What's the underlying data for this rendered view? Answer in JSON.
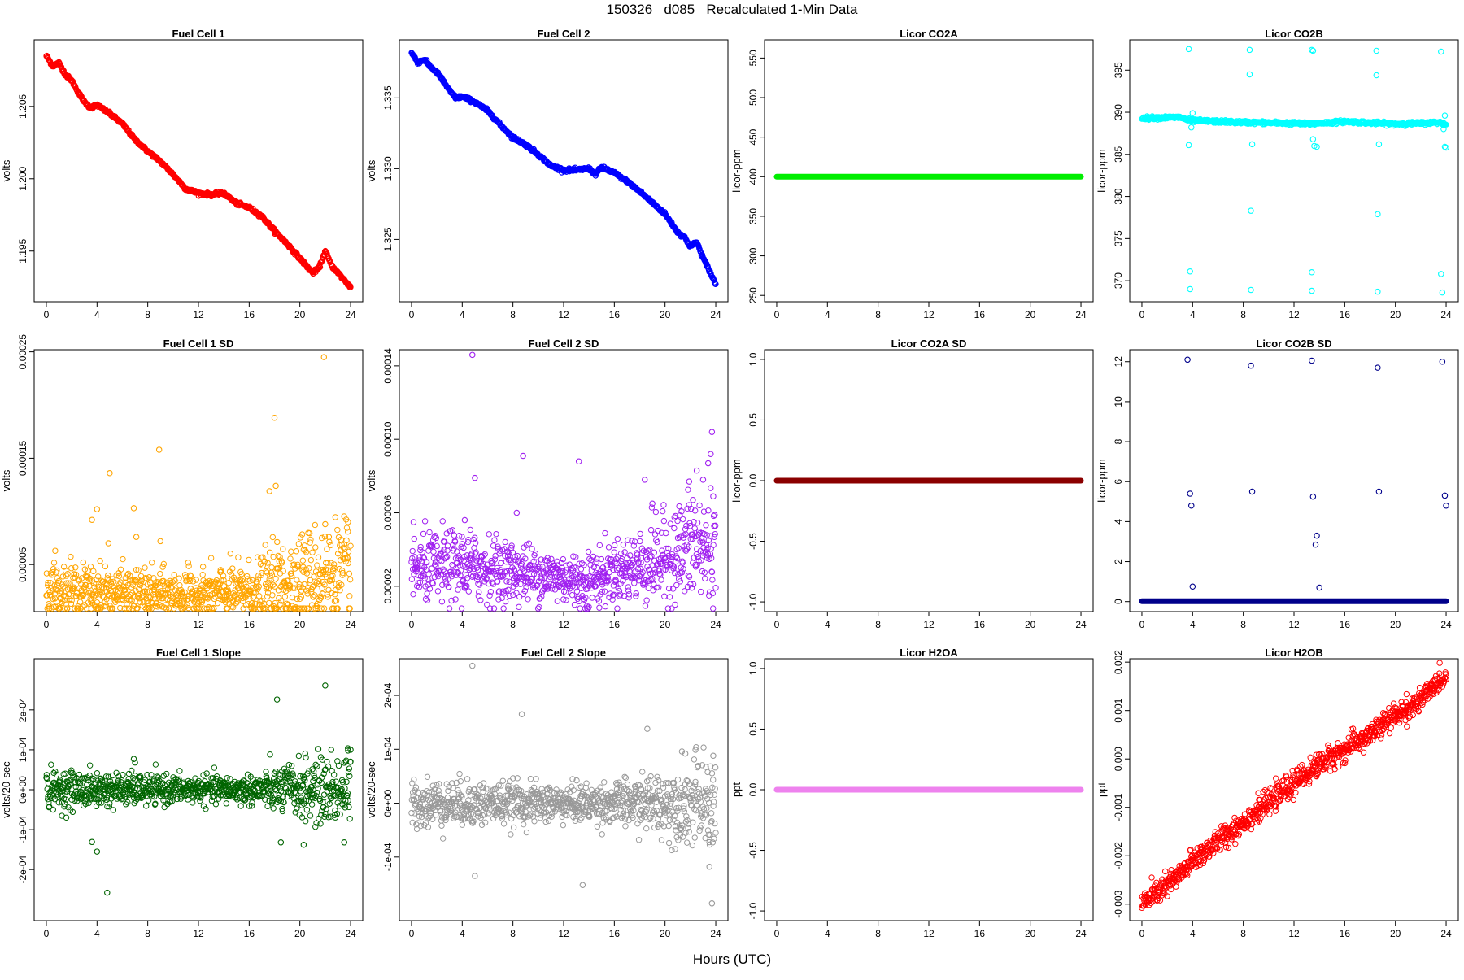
{
  "title": "150326   d085   Recalculated 1-Min Data",
  "xlabel": "Hours (UTC)",
  "chart_data": [
    {
      "type": "scatter",
      "title": "Fuel Cell 1",
      "ylabel": "volts",
      "color": "#ff0000",
      "xlim": [
        0,
        24
      ],
      "ylim": [
        1.1915,
        1.2096
      ],
      "xticks": [
        "0",
        "4",
        "8",
        "12",
        "16",
        "20",
        "24"
      ],
      "yticks": [
        "1.195",
        "1.200",
        "1.205"
      ],
      "ytick_values": [
        1.195,
        1.2,
        1.205
      ],
      "style": "dense-line",
      "x": [
        0,
        0.5,
        1,
        1.5,
        2,
        2.5,
        3,
        3.5,
        4,
        5,
        6,
        7,
        8,
        9,
        10,
        11,
        12,
        13,
        14,
        15,
        16,
        17,
        18,
        19,
        20,
        21,
        21.5,
        22,
        22.5,
        23,
        23.5,
        24
      ],
      "y": [
        1.2085,
        1.2078,
        1.208,
        1.2072,
        1.2068,
        1.206,
        1.2053,
        1.2049,
        1.2051,
        1.2045,
        1.2038,
        1.2027,
        1.2019,
        1.2012,
        1.2003,
        1.1993,
        1.199,
        1.1989,
        1.199,
        1.1983,
        1.198,
        1.1974,
        1.1964,
        1.1955,
        1.1945,
        1.1935,
        1.1938,
        1.195,
        1.194,
        1.1935,
        1.193,
        1.1925
      ]
    },
    {
      "type": "scatter",
      "title": "Fuel Cell 2",
      "ylabel": "volts",
      "color": "#0000ff",
      "xlim": [
        0,
        24
      ],
      "ylim": [
        1.3206,
        1.3391
      ],
      "xticks": [
        "0",
        "4",
        "8",
        "12",
        "16",
        "20",
        "24"
      ],
      "yticks": [
        "1.325",
        "1.330",
        "1.335"
      ],
      "ytick_values": [
        1.325,
        1.33,
        1.335
      ],
      "style": "dense-line",
      "x": [
        0,
        0.5,
        1,
        1.5,
        2,
        2.5,
        3,
        3.5,
        4,
        5,
        6,
        7,
        8,
        9,
        10,
        11,
        12,
        13,
        14,
        14.5,
        15,
        16,
        17,
        18,
        19,
        20,
        21,
        21.5,
        22,
        22.5,
        23,
        23.5,
        24
      ],
      "y": [
        1.3382,
        1.3375,
        1.3377,
        1.3372,
        1.3368,
        1.3362,
        1.3355,
        1.335,
        1.3351,
        1.3347,
        1.3341,
        1.3331,
        1.3322,
        1.3317,
        1.331,
        1.3302,
        1.3299,
        1.3299,
        1.33,
        1.3296,
        1.3301,
        1.3297,
        1.3291,
        1.3284,
        1.3276,
        1.3268,
        1.3255,
        1.3252,
        1.3245,
        1.3248,
        1.3237,
        1.3228,
        1.3218
      ]
    },
    {
      "type": "scatter",
      "title": "Licor CO2A",
      "ylabel": "licor-ppm",
      "color": "#00ee00",
      "xlim": [
        0,
        24
      ],
      "ylim": [
        242,
        573
      ],
      "xticks": [
        "0",
        "4",
        "8",
        "12",
        "16",
        "20",
        "24"
      ],
      "yticks": [
        "250",
        "300",
        "350",
        "400",
        "450",
        "500",
        "550"
      ],
      "ytick_values": [
        250,
        300,
        350,
        400,
        450,
        500,
        550
      ],
      "style": "dense-line",
      "x": [
        0,
        24
      ],
      "y": [
        400,
        400
      ]
    },
    {
      "type": "scatter",
      "title": "Licor CO2B",
      "ylabel": "licor-ppm",
      "color": "#00ffff",
      "xlim": [
        0,
        24
      ],
      "ylim": [
        367.5,
        398.6
      ],
      "xticks": [
        "0",
        "4",
        "8",
        "12",
        "16",
        "20",
        "24"
      ],
      "yticks": [
        "370",
        "375",
        "380",
        "385",
        "390",
        "395"
      ],
      "ytick_values": [
        370,
        375,
        380,
        385,
        390,
        395
      ],
      "style": "dense-line",
      "x": [
        0,
        3,
        3.6,
        4,
        8,
        12,
        13,
        14,
        16,
        20,
        22,
        23.5,
        24
      ],
      "y": [
        389.3,
        389.4,
        389.1,
        389.0,
        388.8,
        388.7,
        388.6,
        388.7,
        388.9,
        388.6,
        388.7,
        388.8,
        388.5
      ],
      "outliers_x": [
        3.7,
        3.7,
        3.8,
        3.8,
        3.9,
        4.0,
        8.5,
        8.5,
        8.7,
        8.6,
        8.6,
        13.4,
        13.4,
        13.5,
        13.6,
        13.8,
        13.4,
        13.5,
        18.5,
        18.5,
        18.7,
        18.6,
        18.6,
        23.6,
        23.6,
        23.9,
        23.8,
        23.7,
        23.9,
        24.0
      ],
      "outliers_y": [
        397.5,
        386.1,
        371.1,
        369.0,
        388.2,
        389.9,
        397.4,
        394.5,
        386.2,
        378.3,
        368.9,
        397.4,
        371.0,
        386.8,
        386.0,
        385.9,
        368.8,
        397.3,
        397.3,
        394.4,
        386.2,
        377.9,
        368.7,
        397.2,
        370.8,
        385.9,
        388.0,
        368.6,
        389.6,
        385.8
      ]
    },
    {
      "type": "scatter",
      "title": "Fuel Cell 1 SD",
      "ylabel": "volts",
      "color": "#ffa500",
      "xlim": [
        0,
        24
      ],
      "ylim": [
        5.8e-06,
        0.000252
      ],
      "xticks": [
        "0",
        "4",
        "8",
        "12",
        "16",
        "20",
        "24"
      ],
      "yticks": [
        "0.00005",
        "0.00015",
        "0.00025"
      ],
      "ytick_values": [
        5e-05,
        0.00015,
        0.00025
      ],
      "style": "noise",
      "baseline_x": [
        0,
        4,
        8,
        12,
        16,
        18,
        20,
        22,
        24
      ],
      "baseline_y": [
        2.7e-05,
        2.5e-05,
        2.2e-05,
        2.2e-05,
        2.5e-05,
        3e-05,
        3.6e-05,
        4e-05,
        4.2e-05
      ],
      "spread": [
        1.2e-05,
        1.2e-05,
        1.1e-05,
        1.1e-05,
        1.3e-05,
        1.8e-05,
        2.2e-05,
        2.4e-05,
        2.6e-05
      ],
      "outliers_x": [
        0.7,
        3.6,
        4.0,
        4.9,
        5.0,
        6.9,
        7.1,
        8.9,
        9.0,
        17.6,
        18.0,
        18.1,
        20.3,
        21.9,
        22.0,
        23.8
      ],
      "outliers_y": [
        6.3e-05,
        9.2e-05,
        0.000102,
        7e-05,
        0.000136,
        0.000103,
        7.6e-05,
        0.000158,
        7.2e-05,
        0.000119,
        0.000188,
        0.000124,
        6.4e-05,
        0.000245,
        8.8e-05,
        9e-05
      ]
    },
    {
      "type": "scatter",
      "title": "Fuel Cell 2 SD",
      "ylabel": "volts",
      "color": "#a020f0",
      "xlim": [
        0,
        24
      ],
      "ylim": [
        6.2e-06,
        0.0001488
      ],
      "xticks": [
        "0",
        "4",
        "8",
        "12",
        "16",
        "20",
        "24"
      ],
      "yticks": [
        "0.00002",
        "0.00006",
        "0.00010",
        "0.00014"
      ],
      "ytick_values": [
        2e-05,
        6e-05,
        0.0001,
        0.00014
      ],
      "style": "noise",
      "baseline_x": [
        0,
        4,
        8,
        12,
        13.5,
        16,
        18,
        20,
        22,
        24
      ],
      "baseline_y": [
        2.9e-05,
        3.1e-05,
        2.8e-05,
        2.5e-05,
        2.2e-05,
        2.8e-05,
        3.1e-05,
        3.5e-05,
        4.1e-05,
        4e-05
      ],
      "spread": [
        9e-06,
        1e-05,
        8e-06,
        7e-06,
        8e-06,
        8e-06,
        1e-05,
        1.2e-05,
        1.5e-05,
        1.6e-05
      ],
      "outliers_x": [
        4.8,
        5.0,
        4.2,
        8.3,
        8.8,
        13.2,
        18.4,
        19.0,
        21.9,
        22.5,
        23.0,
        23.4,
        23.6,
        23.7,
        22.2,
        23.8
      ],
      "outliers_y": [
        0.000146,
        7.9e-05,
        5.6e-05,
        6e-05,
        9.1e-05,
        8.8e-05,
        7.8e-05,
        6.5e-05,
        7.7e-05,
        8.3e-05,
        7.8e-05,
        8.7e-05,
        9.2e-05,
        0.000104,
        6.7e-05,
        6.9e-05
      ]
    },
    {
      "type": "scatter",
      "title": "Licor CO2A SD",
      "ylabel": "licor-ppm",
      "color": "#8b0000",
      "xlim": [
        0,
        24
      ],
      "ylim": [
        -1.08,
        1.08
      ],
      "xticks": [
        "0",
        "4",
        "8",
        "12",
        "16",
        "20",
        "24"
      ],
      "yticks": [
        "-1.0",
        "-0.5",
        "0.0",
        "0.5",
        "1.0"
      ],
      "ytick_values": [
        -1.0,
        -0.5,
        0.0,
        0.5,
        1.0
      ],
      "style": "dense-line",
      "x": [
        0,
        24
      ],
      "y": [
        0,
        0
      ]
    },
    {
      "type": "scatter",
      "title": "Licor CO2B SD",
      "ylabel": "licor-ppm",
      "color": "#00008b",
      "xlim": [
        0,
        24
      ],
      "ylim": [
        -0.5,
        12.6
      ],
      "xticks": [
        "0",
        "4",
        "8",
        "12",
        "16",
        "20",
        "24"
      ],
      "yticks": [
        "0",
        "2",
        "4",
        "6",
        "8",
        "10",
        "12"
      ],
      "ytick_values": [
        0,
        2,
        4,
        6,
        8,
        10,
        12
      ],
      "style": "dense-line",
      "x": [
        0,
        24
      ],
      "y": [
        0.02,
        0.02
      ],
      "outliers_x": [
        3.6,
        3.8,
        3.9,
        4.0,
        8.6,
        8.7,
        13.4,
        13.5,
        13.7,
        13.8,
        14.0,
        18.6,
        18.7,
        23.7,
        23.9,
        24.0
      ],
      "outliers_y": [
        12.1,
        5.4,
        4.8,
        0.75,
        11.8,
        5.5,
        12.05,
        5.25,
        2.85,
        3.3,
        0.7,
        11.7,
        5.5,
        12.0,
        5.3,
        4.8
      ]
    },
    {
      "type": "scatter",
      "title": "Fuel Cell 1 Slope",
      "ylabel": "volts/20-sec",
      "color": "#006400",
      "xlim": [
        0,
        24
      ],
      "ylim": [
        -0.000328,
        0.000328
      ],
      "xticks": [
        "0",
        "4",
        "8",
        "12",
        "16",
        "20",
        "24"
      ],
      "yticks": [
        "-2e-04",
        "-1e-04",
        "0e+00",
        "1e-04",
        "2e-04"
      ],
      "ytick_values": [
        -0.0002,
        -0.0001,
        0,
        0.0001,
        0.0002
      ],
      "style": "noise",
      "baseline_x": [
        0,
        4,
        8,
        12,
        16,
        18,
        20,
        22,
        24
      ],
      "baseline_y": [
        0,
        0,
        0,
        0,
        0,
        0,
        0,
        0,
        0
      ],
      "spread": [
        2.4e-05,
        2.2e-05,
        1.8e-05,
        1.6e-05,
        1.8e-05,
        2.6e-05,
        3.6e-05,
        4.5e-05,
        4.8e-05
      ],
      "outliers_x": [
        3.6,
        4.0,
        4.8,
        6.9,
        7.0,
        18.2,
        18.5,
        20.3,
        22.0,
        23.5,
        23.8,
        24.0
      ],
      "outliers_y": [
        -0.000131,
        -0.000155,
        -0.000258,
        7.7e-05,
        6.8e-05,
        0.000226,
        -0.000132,
        -0.000138,
        0.000261,
        -0.000132,
        9.8e-05,
        0.0001
      ]
    },
    {
      "type": "scatter",
      "title": "Fuel Cell 2 Slope",
      "ylabel": "volts/20-sec",
      "color": "#999999",
      "xlim": [
        0,
        24
      ],
      "ylim": [
        -0.000218,
        0.000268
      ],
      "xticks": [
        "0",
        "4",
        "8",
        "12",
        "16",
        "20",
        "24"
      ],
      "yticks": [
        "-1e-04",
        "0e+00",
        "1e-04",
        "2e-04"
      ],
      "ytick_values": [
        -0.0001,
        0,
        0.0001,
        0.0002
      ],
      "style": "noise",
      "baseline_x": [
        0,
        4,
        8,
        12,
        16,
        18,
        20,
        22,
        24
      ],
      "baseline_y": [
        0,
        0,
        0,
        0,
        0,
        0,
        0,
        0,
        0
      ],
      "spread": [
        2.2e-05,
        2.1e-05,
        1.9e-05,
        1.7e-05,
        1.9e-05,
        2.4e-05,
        3e-05,
        3.8e-05,
        4.5e-05
      ],
      "outliers_x": [
        4.8,
        5.0,
        8.7,
        13.5,
        18.6,
        23.7,
        23.5,
        21.6,
        22.4,
        23.8
      ],
      "outliers_y": [
        0.000255,
        -0.000135,
        0.000165,
        -0.000152,
        0.000138,
        -0.000186,
        -0.000118,
        9.2e-05,
        9.9e-05,
        8.8e-05
      ]
    },
    {
      "type": "scatter",
      "title": "Licor H2OA",
      "ylabel": "ppt",
      "color": "#ee82ee",
      "xlim": [
        0,
        24
      ],
      "ylim": [
        -1.08,
        1.08
      ],
      "xticks": [
        "0",
        "4",
        "8",
        "12",
        "16",
        "20",
        "24"
      ],
      "yticks": [
        "-1.0",
        "-0.5",
        "0.0",
        "0.5",
        "1.0"
      ],
      "ytick_values": [
        -1.0,
        -0.5,
        0.0,
        0.5,
        1.0
      ],
      "style": "dense-line",
      "x": [
        0,
        24
      ],
      "y": [
        0,
        0
      ]
    },
    {
      "type": "scatter",
      "title": "Licor H2OB",
      "ylabel": "ppt",
      "color": "#ff0000",
      "xlim": [
        0,
        24
      ],
      "ylim": [
        -0.00334,
        0.00207
      ],
      "xticks": [
        "0",
        "4",
        "8",
        "12",
        "16",
        "20",
        "24"
      ],
      "yticks": [
        "-0.003",
        "-0.002",
        "-0.001",
        "0.000",
        "0.001",
        "0.002"
      ],
      "ytick_values": [
        -0.003,
        -0.002,
        -0.001,
        0.0,
        0.001,
        0.002
      ],
      "style": "noise",
      "baseline_x": [
        0,
        1,
        2,
        3,
        4,
        6,
        8,
        10,
        12,
        14,
        16,
        18,
        20,
        22,
        23,
        24
      ],
      "baseline_y": [
        -0.003,
        -0.0028,
        -0.0026,
        -0.0024,
        -0.0021,
        -0.0017,
        -0.0013,
        -0.0009,
        -0.0005,
        -0.0001,
        0.0002,
        0.0005,
        0.0009,
        0.0012,
        0.0015,
        0.0017
      ],
      "spread": [
        0.00012,
        0.00012,
        0.00012,
        0.00012,
        0.00012,
        0.00012,
        0.00012,
        0.00012,
        0.00012,
        0.00012,
        0.00012,
        0.00012,
        0.00012,
        0.00012,
        0.0001,
        8e-05
      ]
    }
  ]
}
